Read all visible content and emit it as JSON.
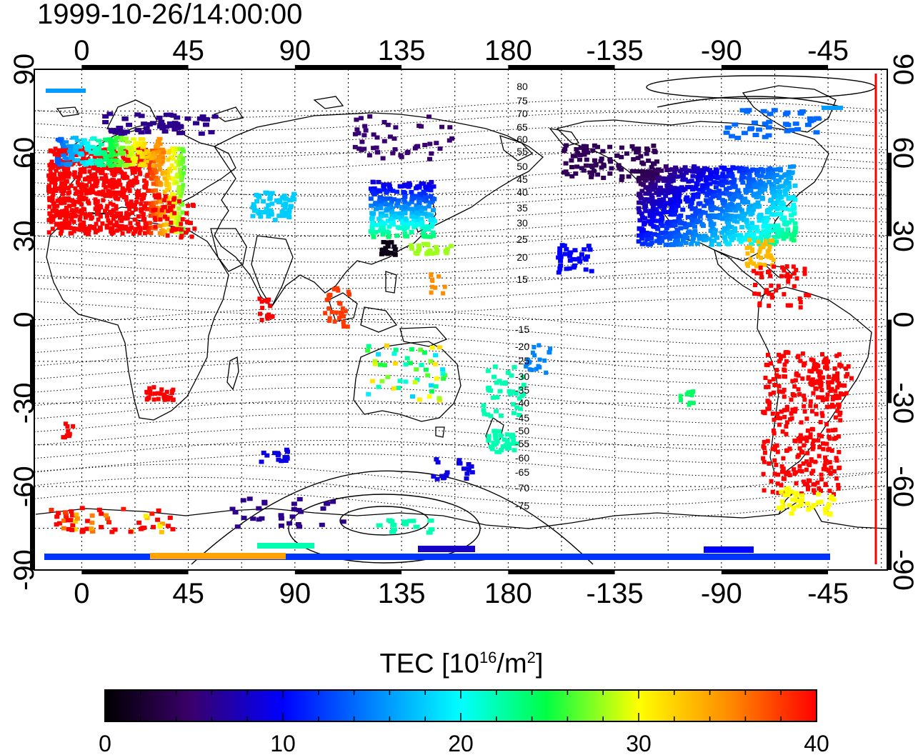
{
  "title": "1999-10-26/14:00:00",
  "map": {
    "lon_ticks_top": [
      "0",
      "45",
      "90",
      "135",
      "180",
      "-135",
      "-90",
      "-45"
    ],
    "lon_ticks_bottom": [
      "0",
      "45",
      "90",
      "135",
      "180",
      "-135",
      "-90",
      "-45"
    ],
    "lat_ticks_left": [
      "90",
      "60",
      "30",
      "0",
      "-30",
      "-60",
      "-90"
    ],
    "lat_ticks_right": [
      "90",
      "60",
      "30",
      "0",
      "-30",
      "-60",
      "-90"
    ],
    "magnetic_lat_labels_north": [
      "80",
      "75",
      "70",
      "65",
      "60",
      "55",
      "50",
      "45",
      "40",
      "35",
      "30",
      "25",
      "20",
      "15"
    ],
    "magnetic_lat_labels_south": [
      "-15",
      "-20",
      "-25",
      "-30",
      "-35",
      "-40",
      "-45",
      "-50",
      "-55",
      "-60",
      "-65",
      "-70",
      "-75"
    ],
    "terminator_color": "#ff0000"
  },
  "colorbar": {
    "label_main": "TEC  [10",
    "label_exp1": "16",
    "label_mid": "/m",
    "label_exp2": "2",
    "label_end": "]",
    "ticks": [
      "0",
      "10",
      "20",
      "30",
      "40"
    ],
    "min": 0,
    "max": 40
  },
  "tec_regions": [
    {
      "name": "europe",
      "tec": 40
    },
    {
      "name": "north-america",
      "tec": 18
    },
    {
      "name": "japan",
      "tec": 12
    },
    {
      "name": "south-america",
      "tec": 40
    },
    {
      "name": "australia",
      "tec": 20
    },
    {
      "name": "antarctica-ring",
      "tec": 12
    }
  ]
}
